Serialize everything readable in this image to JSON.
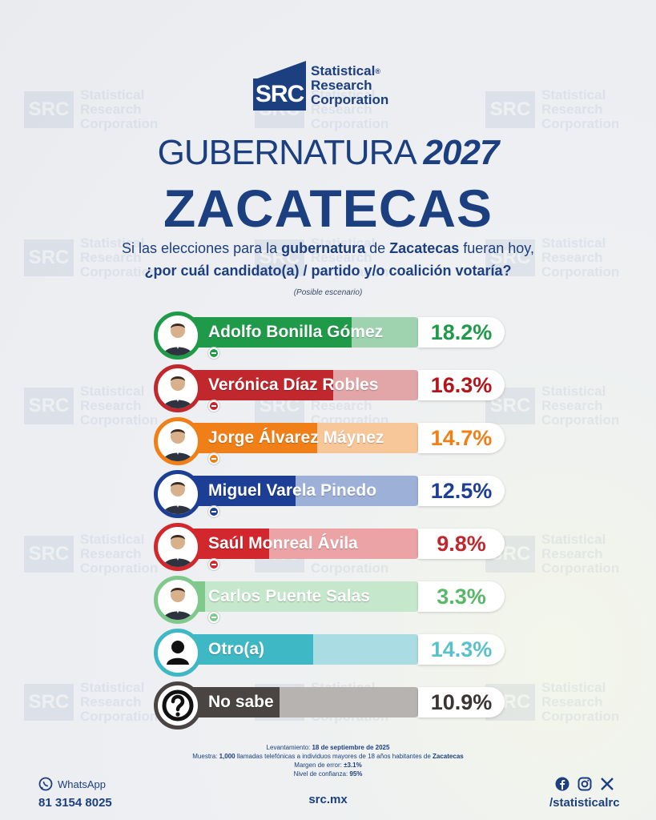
{
  "brand": {
    "logo_abbr": "SRC",
    "logo_line1": "Statistical",
    "logo_line2": "Research",
    "logo_line3": "Corporation",
    "registered": "®"
  },
  "title": {
    "line1_text": "GUBERNATURA",
    "line1_year": "2027",
    "line2": "ZACATECAS"
  },
  "question": {
    "part1": "Si las elecciones para la ",
    "part2_bold": "gubernatura",
    "part3": " de ",
    "part4_bold": "Zacatecas",
    "part5": " fueran hoy,",
    "line2": "¿por cuál candidato(a) / partido y/o coalición votaría?",
    "note": "(Posible escenario)"
  },
  "chart_data": {
    "type": "bar",
    "orientation": "horizontal",
    "categories": [
      "Adolfo Bonilla Gómez",
      "Verónica Díaz Robles",
      "Jorge Álvarez Máynez",
      "Miguel Varela Pinedo",
      "Saúl Monreal Ávila",
      "Carlos Puente Salas",
      "Otro(a)",
      "No sabe"
    ],
    "values": [
      18.2,
      16.3,
      14.7,
      12.5,
      9.8,
      3.3,
      14.3,
      10.9
    ],
    "labels": [
      "18.2%",
      "16.3%",
      "14.7%",
      "12.5%",
      "9.8%",
      "3.3%",
      "14.3%",
      "10.9%"
    ],
    "parties": [
      "PRI",
      "MORENA",
      "MC",
      "PAN",
      "PT",
      "PVEM",
      "",
      ""
    ],
    "colors": [
      "#1e9a48",
      "#c0282d",
      "#f07f17",
      "#1c3f95",
      "#d1272d",
      "#7fc98d",
      "#3fb8c5",
      "#4a4442"
    ],
    "track_colors": [
      "#9fd3b0",
      "#e3a6a8",
      "#f7c79a",
      "#9db0d8",
      "#eba3a5",
      "#c5e7cb",
      "#a9dde3",
      "#b7b3b1"
    ],
    "text_colors": [
      "#1e9a48",
      "#b2151b",
      "#f07f17",
      "#1c3f95",
      "#c0282d",
      "#58b868",
      "#58c1cc",
      "#3a3432"
    ],
    "avatar_types": [
      "person",
      "person",
      "person",
      "person",
      "person",
      "person",
      "generic",
      "question"
    ],
    "xlim": [
      0,
      25
    ]
  },
  "footnote": {
    "line1_label": "Levantamiento: ",
    "line1_value": "18 de septiembre de 2025",
    "line2_label": "Muestra: ",
    "line2_bold": "1,000",
    "line2_text": " llamadas telefónicas a individuos mayores de 18 años habitantes de ",
    "line2_place": "Zacatecas",
    "line3_label": "Margen de error: ",
    "line3_value": "±3.1%",
    "line4_label": "Nivel de confianza: ",
    "line4_value": "95%"
  },
  "footer": {
    "whatsapp_label": "WhatsApp",
    "whatsapp_number": "81 3154 8025",
    "website": "src.mx",
    "social_handle": "/statisticalrc"
  }
}
